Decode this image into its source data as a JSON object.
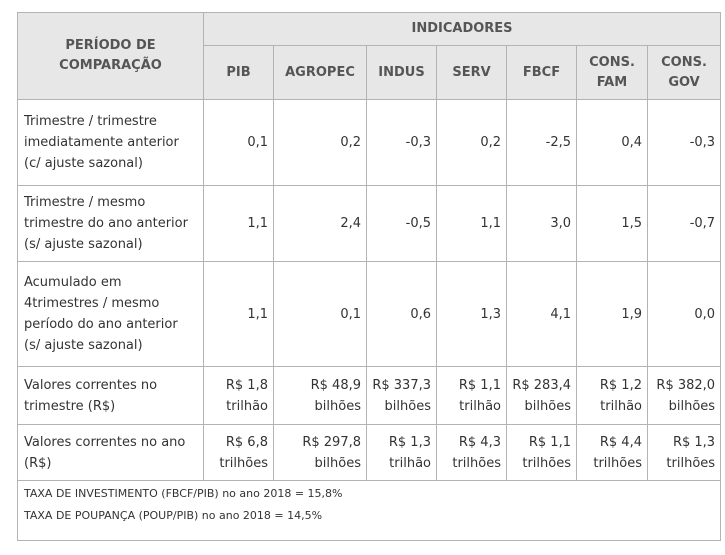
{
  "header": {
    "period_label": "PERÍODO DE COMPARAÇÃO",
    "indicators_label": "INDICADORES",
    "columns": [
      "PIB",
      "AGROPEC",
      "INDUS",
      "SERV",
      "FBCF",
      "CONS. FAM",
      "CONS. GOV"
    ]
  },
  "rows": [
    {
      "label": "Trimestre / trimestre imediatamente anterior (c/ ajuste sazonal)",
      "values": [
        "0,1",
        "0,2",
        "-0,3",
        "0,2",
        "-2,5",
        "0,4",
        "-0,3"
      ]
    },
    {
      "label": "Trimestre / mesmo trimestre do ano anterior (s/ ajuste sazonal)",
      "values": [
        "1,1",
        "2,4",
        "-0,5",
        "1,1",
        "3,0",
        "1,5",
        "-0,7"
      ]
    },
    {
      "label": "Acumulado em 4trimestres / mesmo período do ano anterior (s/ ajuste sazonal)",
      "values": [
        "1,1",
        "0,1",
        "0,6",
        "1,3",
        "4,1",
        "1,9",
        "0,0"
      ]
    },
    {
      "label": "Valores correntes no trimestre (R$)",
      "values": [
        "R$ 1,8 trilhão",
        "R$ 48,9 bilhões",
        "R$ 337,3 bilhões",
        "R$ 1,1 trilhão",
        "R$ 283,4 bilhões",
        "R$ 1,2 trilhão",
        "R$ 382,0 bilhões"
      ]
    },
    {
      "label": "Valores correntes no ano (R$)",
      "values": [
        "R$ 6,8 trilhões",
        "R$ 297,8 bilhões",
        "R$ 1,3 trilhão",
        "R$ 4,3 trilhões",
        "R$ 1,1 trilhões",
        "R$ 4,4 trilhões",
        "R$ 1,3 trilhões"
      ]
    }
  ],
  "notes": [
    "TAXA DE INVESTIMENTO (FBCF/PIB) no ano 2018 = 15,8%",
    "TAXA DE POUPANÇA (POUP/PIB) no ano 2018 = 14,5%"
  ]
}
